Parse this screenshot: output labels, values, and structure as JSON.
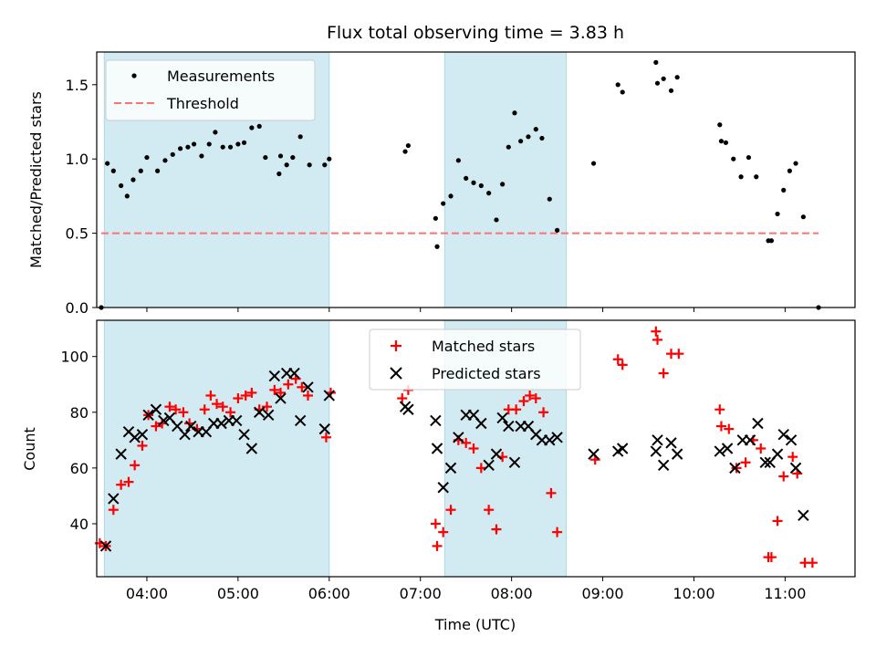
{
  "title": "Flux total observing time = 3.83 h",
  "colors": {
    "shade": "#add8e6",
    "measurement": "#000000",
    "threshold": "#ff7070",
    "matched": "#ff0000",
    "predicted": "#000000"
  },
  "chart_data": [
    {
      "type": "scatter",
      "panel": "top",
      "ylabel": "Matched/Predicted stars",
      "ylim": [
        0,
        1.72
      ],
      "yticks": [
        "0.0",
        "0.5",
        "1.0",
        "1.5"
      ],
      "xlim": [
        "03:27",
        "11:46"
      ],
      "legend": {
        "placement": "top-left",
        "entries": [
          "Measurements",
          "Threshold"
        ]
      },
      "threshold": {
        "name": "Threshold",
        "value": 0.5,
        "x_range": [
          "03:30",
          "11:22"
        ]
      },
      "shaded_intervals": [
        [
          "03:32",
          "06:00"
        ],
        [
          "07:16",
          "08:36"
        ]
      ],
      "series": [
        {
          "name": "Measurements",
          "marker": "dot",
          "points": [
            [
              "03:30",
              0.0
            ],
            [
              "03:34",
              0.97
            ],
            [
              "03:38",
              0.92
            ],
            [
              "03:43",
              0.82
            ],
            [
              "03:47",
              0.75
            ],
            [
              "03:51",
              0.86
            ],
            [
              "03:56",
              0.92
            ],
            [
              "04:00",
              1.01
            ],
            [
              "04:07",
              0.92
            ],
            [
              "04:12",
              0.99
            ],
            [
              "04:17",
              1.03
            ],
            [
              "04:22",
              1.07
            ],
            [
              "04:27",
              1.08
            ],
            [
              "04:31",
              1.1
            ],
            [
              "04:36",
              1.02
            ],
            [
              "04:41",
              1.1
            ],
            [
              "04:45",
              1.18
            ],
            [
              "04:50",
              1.08
            ],
            [
              "04:55",
              1.08
            ],
            [
              "05:00",
              1.1
            ],
            [
              "05:04",
              1.11
            ],
            [
              "05:09",
              1.21
            ],
            [
              "05:14",
              1.22
            ],
            [
              "05:18",
              1.01
            ],
            [
              "05:27",
              0.9
            ],
            [
              "05:28",
              1.02
            ],
            [
              "05:32",
              0.96
            ],
            [
              "05:36",
              1.01
            ],
            [
              "05:41",
              1.15
            ],
            [
              "05:47",
              0.96
            ],
            [
              "05:57",
              0.96
            ],
            [
              "06:00",
              1.0
            ],
            [
              "06:50",
              1.05
            ],
            [
              "06:52",
              1.09
            ],
            [
              "07:10",
              0.6
            ],
            [
              "07:11",
              0.41
            ],
            [
              "07:15",
              0.7
            ],
            [
              "07:20",
              0.75
            ],
            [
              "07:25",
              0.99
            ],
            [
              "07:30",
              0.87
            ],
            [
              "07:35",
              0.84
            ],
            [
              "07:40",
              0.82
            ],
            [
              "07:45",
              0.77
            ],
            [
              "07:50",
              0.59
            ],
            [
              "07:54",
              0.83
            ],
            [
              "07:58",
              1.08
            ],
            [
              "08:02",
              1.31
            ],
            [
              "08:06",
              1.12
            ],
            [
              "08:11",
              1.15
            ],
            [
              "08:16",
              1.2
            ],
            [
              "08:20",
              1.14
            ],
            [
              "08:25",
              0.73
            ],
            [
              "08:30",
              0.52
            ],
            [
              "08:54",
              0.97
            ],
            [
              "09:10",
              1.5
            ],
            [
              "09:13",
              1.45
            ],
            [
              "09:35",
              1.65
            ],
            [
              "09:36",
              1.51
            ],
            [
              "09:40",
              1.54
            ],
            [
              "09:45",
              1.46
            ],
            [
              "09:49",
              1.55
            ],
            [
              "10:17",
              1.23
            ],
            [
              "10:18",
              1.12
            ],
            [
              "10:21",
              1.11
            ],
            [
              "10:26",
              1.0
            ],
            [
              "10:31",
              0.88
            ],
            [
              "10:36",
              1.01
            ],
            [
              "10:41",
              0.88
            ],
            [
              "10:49",
              0.45
            ],
            [
              "10:51",
              0.45
            ],
            [
              "10:55",
              0.63
            ],
            [
              "10:59",
              0.79
            ],
            [
              "11:03",
              0.92
            ],
            [
              "11:07",
              0.97
            ],
            [
              "11:12",
              0.61
            ],
            [
              "11:22",
              0.0
            ]
          ]
        }
      ]
    },
    {
      "type": "scatter",
      "panel": "bottom",
      "ylabel": "Count",
      "xlabel": "Time (UTC)",
      "ylim": [
        21,
        113
      ],
      "yticks": [
        "40",
        "60",
        "80",
        "100"
      ],
      "xlim": [
        "03:27",
        "11:46"
      ],
      "xticks": [
        "04:00",
        "05:00",
        "06:00",
        "07:00",
        "08:00",
        "09:00",
        "10:00",
        "11:00"
      ],
      "legend": {
        "placement": "top-center",
        "entries": [
          "Matched stars",
          "Predicted stars"
        ]
      },
      "shaded_intervals": [
        [
          "03:32",
          "06:00"
        ],
        [
          "07:16",
          "08:36"
        ]
      ],
      "series": [
        {
          "name": "Matched stars",
          "marker": "plus",
          "points": [
            [
              "03:29",
              33
            ],
            [
              "03:33",
              32
            ],
            [
              "03:38",
              45
            ],
            [
              "03:43",
              54
            ],
            [
              "03:48",
              55
            ],
            [
              "03:52",
              61
            ],
            [
              "03:57",
              68
            ],
            [
              "04:01",
              79
            ],
            [
              "04:06",
              75
            ],
            [
              "04:10",
              76
            ],
            [
              "04:15",
              82
            ],
            [
              "04:19",
              81
            ],
            [
              "04:24",
              80
            ],
            [
              "04:28",
              76
            ],
            [
              "04:33",
              74
            ],
            [
              "04:38",
              81
            ],
            [
              "04:42",
              86
            ],
            [
              "04:46",
              83
            ],
            [
              "04:50",
              82
            ],
            [
              "04:55",
              80
            ],
            [
              "05:00",
              85
            ],
            [
              "05:05",
              86
            ],
            [
              "05:09",
              87
            ],
            [
              "05:14",
              81
            ],
            [
              "05:19",
              82
            ],
            [
              "05:24",
              88
            ],
            [
              "05:28",
              87
            ],
            [
              "05:33",
              90
            ],
            [
              "05:38",
              92
            ],
            [
              "05:42",
              89
            ],
            [
              "05:46",
              86
            ],
            [
              "05:58",
              71
            ],
            [
              "06:01",
              87
            ],
            [
              "06:48",
              85
            ],
            [
              "06:52",
              88
            ],
            [
              "07:10",
              40
            ],
            [
              "07:11",
              32
            ],
            [
              "07:15",
              37
            ],
            [
              "07:20",
              45
            ],
            [
              "07:25",
              70
            ],
            [
              "07:30",
              69
            ],
            [
              "07:35",
              67
            ],
            [
              "07:40",
              60
            ],
            [
              "07:45",
              45
            ],
            [
              "07:50",
              38
            ],
            [
              "07:54",
              64
            ],
            [
              "07:58",
              81
            ],
            [
              "08:03",
              81
            ],
            [
              "08:08",
              84
            ],
            [
              "08:12",
              86
            ],
            [
              "08:16",
              85
            ],
            [
              "08:21",
              80
            ],
            [
              "08:26",
              51
            ],
            [
              "08:30",
              37
            ],
            [
              "08:55",
              63
            ],
            [
              "09:10",
              99
            ],
            [
              "09:13",
              97
            ],
            [
              "09:35",
              109
            ],
            [
              "09:36",
              106
            ],
            [
              "09:40",
              94
            ],
            [
              "09:45",
              101
            ],
            [
              "09:50",
              101
            ],
            [
              "10:17",
              81
            ],
            [
              "10:18",
              75
            ],
            [
              "10:23",
              74
            ],
            [
              "10:28",
              60
            ],
            [
              "10:34",
              62
            ],
            [
              "10:39",
              70
            ],
            [
              "10:44",
              67
            ],
            [
              "10:49",
              28
            ],
            [
              "10:51",
              28
            ],
            [
              "10:55",
              41
            ],
            [
              "10:59",
              57
            ],
            [
              "11:05",
              64
            ],
            [
              "11:08",
              58
            ],
            [
              "11:13",
              26
            ],
            [
              "11:18",
              26
            ]
          ]
        },
        {
          "name": "Predicted stars",
          "marker": "x",
          "points": [
            [
              "03:33",
              32
            ],
            [
              "03:38",
              49
            ],
            [
              "03:43",
              65
            ],
            [
              "03:48",
              73
            ],
            [
              "03:52",
              71
            ],
            [
              "03:57",
              72
            ],
            [
              "04:01",
              79
            ],
            [
              "04:06",
              81
            ],
            [
              "04:11",
              77
            ],
            [
              "04:15",
              78
            ],
            [
              "04:20",
              75
            ],
            [
              "04:25",
              72
            ],
            [
              "04:29",
              75
            ],
            [
              "04:34",
              73
            ],
            [
              "04:39",
              73
            ],
            [
              "04:44",
              76
            ],
            [
              "04:49",
              76
            ],
            [
              "04:54",
              77
            ],
            [
              "04:59",
              77
            ],
            [
              "05:04",
              72
            ],
            [
              "05:09",
              67
            ],
            [
              "05:14",
              80
            ],
            [
              "05:20",
              79
            ],
            [
              "05:24",
              93
            ],
            [
              "05:28",
              85
            ],
            [
              "05:32",
              94
            ],
            [
              "05:37",
              94
            ],
            [
              "05:41",
              77
            ],
            [
              "05:46",
              89
            ],
            [
              "05:57",
              74
            ],
            [
              "06:00",
              86
            ],
            [
              "06:50",
              82
            ],
            [
              "06:52",
              81
            ],
            [
              "07:10",
              77
            ],
            [
              "07:11",
              67
            ],
            [
              "07:15",
              53
            ],
            [
              "07:20",
              60
            ],
            [
              "07:25",
              71
            ],
            [
              "07:30",
              79
            ],
            [
              "07:35",
              79
            ],
            [
              "07:40",
              76
            ],
            [
              "07:45",
              61
            ],
            [
              "07:50",
              65
            ],
            [
              "07:54",
              78
            ],
            [
              "07:58",
              75
            ],
            [
              "08:02",
              62
            ],
            [
              "08:06",
              75
            ],
            [
              "08:11",
              75
            ],
            [
              "08:16",
              72
            ],
            [
              "08:20",
              70
            ],
            [
              "08:25",
              70
            ],
            [
              "08:30",
              71
            ],
            [
              "08:54",
              65
            ],
            [
              "09:10",
              66
            ],
            [
              "09:13",
              67
            ],
            [
              "09:35",
              66
            ],
            [
              "09:36",
              70
            ],
            [
              "09:40",
              61
            ],
            [
              "09:45",
              69
            ],
            [
              "09:49",
              65
            ],
            [
              "10:17",
              66
            ],
            [
              "10:22",
              67
            ],
            [
              "10:27",
              60
            ],
            [
              "10:32",
              70
            ],
            [
              "10:37",
              70
            ],
            [
              "10:42",
              76
            ],
            [
              "10:47",
              62
            ],
            [
              "10:50",
              62
            ],
            [
              "10:55",
              65
            ],
            [
              "10:59",
              72
            ],
            [
              "11:04",
              70
            ],
            [
              "11:07",
              60
            ],
            [
              "11:12",
              43
            ]
          ]
        }
      ]
    }
  ]
}
